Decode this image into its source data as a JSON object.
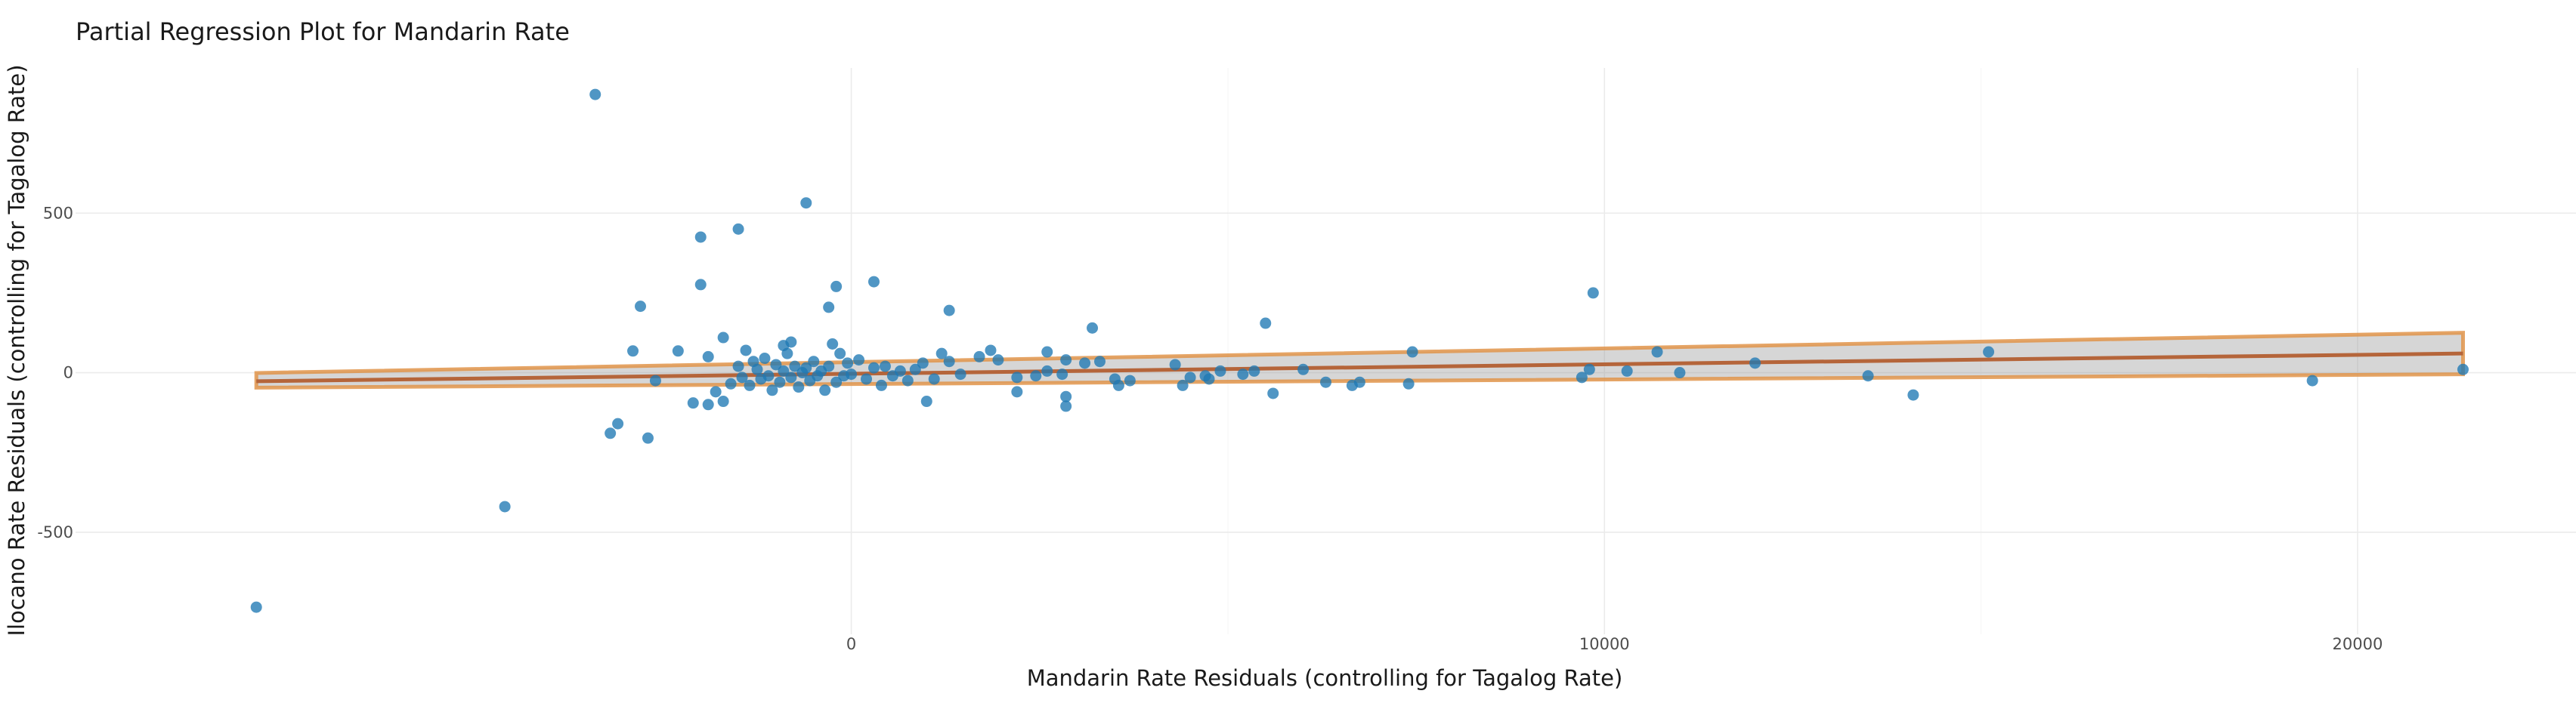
{
  "chart_data": {
    "type": "scatter",
    "title": "Partial Regression Plot for Mandarin Rate",
    "xlabel": "Mandarin Rate Residuals (controlling for Tagalog Rate)",
    "ylabel": "Ilocano Rate Residuals (controlling for Tagalog Rate)",
    "xlim": [
      -10300,
      22900
    ],
    "ylim": [
      -820,
      955
    ],
    "xticks": [
      0,
      10000,
      20000
    ],
    "yticks": [
      -500,
      0,
      500
    ],
    "grid": true,
    "legend": "none",
    "colors": {
      "points": "#1f78b4",
      "fit_line": "#b5653a",
      "band_fill": "#999999",
      "band_edge": "#e0944a"
    },
    "fit": {
      "x": [
        -7900,
        21400
      ],
      "y": [
        -27,
        60
      ],
      "band_lower": [
        -47,
        -5
      ],
      "band_upper": [
        -1,
        125
      ]
    },
    "points": [
      {
        "x": -7900,
        "y": -735
      },
      {
        "x": -4600,
        "y": -420
      },
      {
        "x": -3400,
        "y": 872
      },
      {
        "x": -2800,
        "y": 208
      },
      {
        "x": -1500,
        "y": 450
      },
      {
        "x": -2000,
        "y": 425
      },
      {
        "x": -600,
        "y": 532
      },
      {
        "x": -2000,
        "y": 276
      },
      {
        "x": 300,
        "y": 285
      },
      {
        "x": -200,
        "y": 270
      },
      {
        "x": -800,
        "y": 96
      },
      {
        "x": -300,
        "y": 205
      },
      {
        "x": 1300,
        "y": 195
      },
      {
        "x": -2900,
        "y": 68
      },
      {
        "x": -2300,
        "y": 68
      },
      {
        "x": -3100,
        "y": -160
      },
      {
        "x": -3200,
        "y": -190
      },
      {
        "x": -2700,
        "y": -205
      },
      {
        "x": -2600,
        "y": -25
      },
      {
        "x": -1700,
        "y": 110
      },
      {
        "x": -1900,
        "y": 50
      },
      {
        "x": -2100,
        "y": -95
      },
      {
        "x": -1900,
        "y": -100
      },
      {
        "x": -1800,
        "y": -60
      },
      {
        "x": -1700,
        "y": -90
      },
      {
        "x": -1600,
        "y": -35
      },
      {
        "x": -1500,
        "y": 20
      },
      {
        "x": -1450,
        "y": -15
      },
      {
        "x": -1400,
        "y": 70
      },
      {
        "x": -1350,
        "y": -40
      },
      {
        "x": -1300,
        "y": 35
      },
      {
        "x": -1250,
        "y": 10
      },
      {
        "x": -1200,
        "y": -20
      },
      {
        "x": -1150,
        "y": 45
      },
      {
        "x": -1100,
        "y": -10
      },
      {
        "x": -1050,
        "y": -55
      },
      {
        "x": -1000,
        "y": 25
      },
      {
        "x": -950,
        "y": -30
      },
      {
        "x": -900,
        "y": 5
      },
      {
        "x": -900,
        "y": 85
      },
      {
        "x": -850,
        "y": 60
      },
      {
        "x": -800,
        "y": -15
      },
      {
        "x": -750,
        "y": 20
      },
      {
        "x": -700,
        "y": -45
      },
      {
        "x": -650,
        "y": 0
      },
      {
        "x": -600,
        "y": 15
      },
      {
        "x": -550,
        "y": -25
      },
      {
        "x": -500,
        "y": 35
      },
      {
        "x": -450,
        "y": -10
      },
      {
        "x": -400,
        "y": 5
      },
      {
        "x": -350,
        "y": -55
      },
      {
        "x": -300,
        "y": 20
      },
      {
        "x": -250,
        "y": 90
      },
      {
        "x": -200,
        "y": -30
      },
      {
        "x": -150,
        "y": 60
      },
      {
        "x": -100,
        "y": -10
      },
      {
        "x": -50,
        "y": 30
      },
      {
        "x": 0,
        "y": -5
      },
      {
        "x": 100,
        "y": 40
      },
      {
        "x": 200,
        "y": -20
      },
      {
        "x": 300,
        "y": 15
      },
      {
        "x": 400,
        "y": -40
      },
      {
        "x": 450,
        "y": 20
      },
      {
        "x": 550,
        "y": -10
      },
      {
        "x": 650,
        "y": 5
      },
      {
        "x": 750,
        "y": -25
      },
      {
        "x": 850,
        "y": 10
      },
      {
        "x": 950,
        "y": 30
      },
      {
        "x": 1000,
        "y": -90
      },
      {
        "x": 1100,
        "y": -20
      },
      {
        "x": 1200,
        "y": 60
      },
      {
        "x": 1300,
        "y": 35
      },
      {
        "x": 1450,
        "y": -5
      },
      {
        "x": 1700,
        "y": 50
      },
      {
        "x": 1850,
        "y": 70
      },
      {
        "x": 1950,
        "y": 40
      },
      {
        "x": 2200,
        "y": -15
      },
      {
        "x": 2200,
        "y": -60
      },
      {
        "x": 2450,
        "y": -10
      },
      {
        "x": 2600,
        "y": 5
      },
      {
        "x": 2600,
        "y": 65
      },
      {
        "x": 2800,
        "y": -5
      },
      {
        "x": 2850,
        "y": 40
      },
      {
        "x": 2850,
        "y": -75
      },
      {
        "x": 2850,
        "y": -105
      },
      {
        "x": 3100,
        "y": 30
      },
      {
        "x": 3200,
        "y": 140
      },
      {
        "x": 3300,
        "y": 35
      },
      {
        "x": 3500,
        "y": -20
      },
      {
        "x": 3550,
        "y": -40
      },
      {
        "x": 3700,
        "y": -25
      },
      {
        "x": 4300,
        "y": 25
      },
      {
        "x": 4400,
        "y": -40
      },
      {
        "x": 4500,
        "y": -15
      },
      {
        "x": 4700,
        "y": -10
      },
      {
        "x": 4750,
        "y": -20
      },
      {
        "x": 4900,
        "y": 5
      },
      {
        "x": 5200,
        "y": -5
      },
      {
        "x": 5350,
        "y": 5
      },
      {
        "x": 5500,
        "y": 155
      },
      {
        "x": 5600,
        "y": -65
      },
      {
        "x": 6000,
        "y": 10
      },
      {
        "x": 6300,
        "y": -30
      },
      {
        "x": 6650,
        "y": -40
      },
      {
        "x": 6750,
        "y": -30
      },
      {
        "x": 7400,
        "y": -35
      },
      {
        "x": 7450,
        "y": 65
      },
      {
        "x": 9700,
        "y": -15
      },
      {
        "x": 9800,
        "y": 10
      },
      {
        "x": 9850,
        "y": 250
      },
      {
        "x": 10300,
        "y": 5
      },
      {
        "x": 10700,
        "y": 65
      },
      {
        "x": 11000,
        "y": 0
      },
      {
        "x": 12000,
        "y": 30
      },
      {
        "x": 13500,
        "y": -10
      },
      {
        "x": 14100,
        "y": -70
      },
      {
        "x": 15100,
        "y": 65
      },
      {
        "x": 19400,
        "y": -25
      },
      {
        "x": 21400,
        "y": 10
      }
    ]
  }
}
